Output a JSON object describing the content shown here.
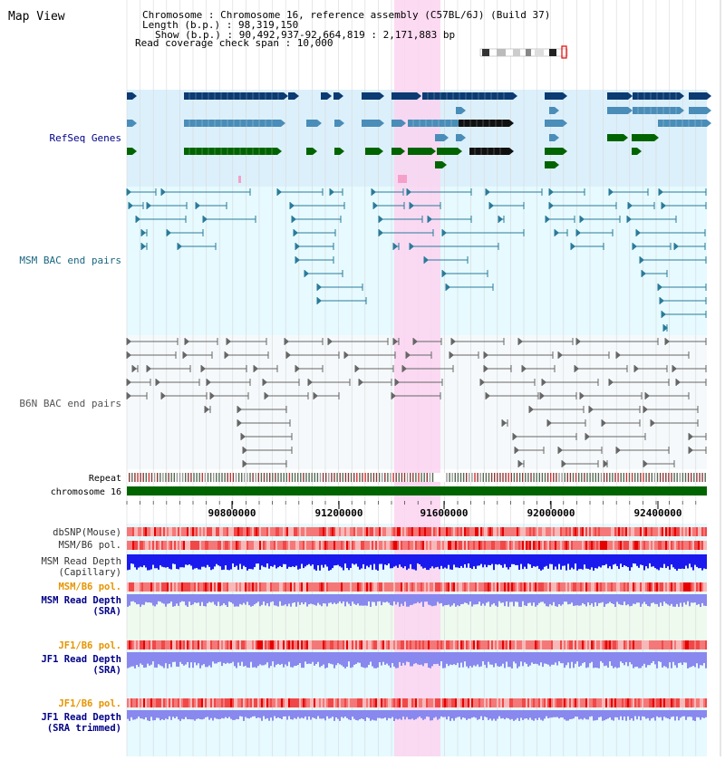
{
  "header": {
    "title": "Map View",
    "info_lines": [
      "Chromosome     : Chromosome 16, reference assembly (C57BL/6J) (Build 37)",
      "Length (b.p.) : 98,319,150",
      "Show (b.p.) : 90,492,937-92,664,819 : 2,171,883 bp",
      "Read coverage check span : 10,000"
    ]
  },
  "ruler": {
    "ticks": [
      "90800000",
      "91200000",
      "91600000",
      "92000000",
      "92400000"
    ]
  },
  "tracks": {
    "refseq": "RefSeq Genes",
    "msm_bac": "MSM BAC end pairs",
    "b6n_bac": "B6N BAC end pairs",
    "repeat": "Repeat",
    "chromosome": "chromosome 16",
    "dbsnp": "dbSNP(Mouse)",
    "msm_b6_pol": "MSM/B6 pol.",
    "msm_depth_cap_1": "MSM Read Depth",
    "msm_depth_cap_2": "(Capillary)",
    "msm_b6_pol_2": "MSM/B6 pol.",
    "msm_depth_sra_1": "MSM Read Depth",
    "msm_depth_sra_2": "(SRA)",
    "jf1_b6_pol": "JF1/B6 pol.",
    "jf1_depth_sra_1": "JF1 Read Depth",
    "jf1_depth_sra_2": "(SRA)",
    "jf1_b6_pol_2": "JF1/B6 pol.",
    "jf1_depth_trim_1": "JF1 Read Depth",
    "jf1_depth_trim_2": "(SRA trimmed)"
  },
  "colors": {
    "refseq_bg": "#dcf0fb",
    "msm_bac_bg": "#e6faff",
    "highlight": "#fbd3f0",
    "gene_dark": "#0c3b73",
    "gene_mid": "#4a8db8",
    "gene_green": "#006400",
    "msm_line": "#2b7a99",
    "b6n_line": "#666666",
    "chromosome_bar": "#006400",
    "depth_blue": "#1a1aee",
    "depth_light": "#8888ee",
    "orange_label": "#e69500",
    "navy_label": "#000088",
    "teal_label": "#1a6680"
  }
}
